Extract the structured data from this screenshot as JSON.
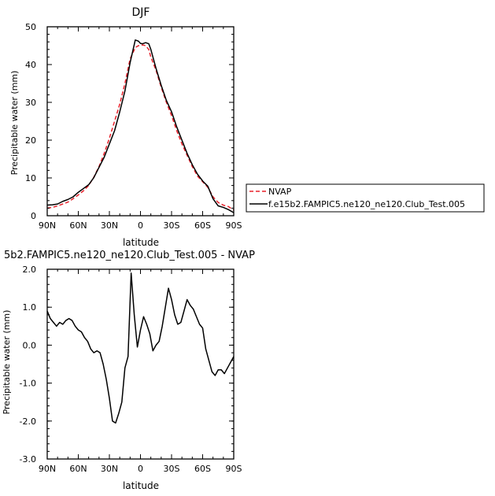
{
  "chart_data": [
    {
      "type": "line",
      "title": "DJF",
      "xlabel": "latitude",
      "ylabel": "Precipitable water (mm)",
      "xlim": [
        90,
        -90
      ],
      "ylim": [
        0,
        50
      ],
      "xticks": [
        90,
        60,
        30,
        0,
        -30,
        -60,
        -90
      ],
      "xtick_labels": [
        "90N",
        "60N",
        "30N",
        "0",
        "30S",
        "60S",
        "90S"
      ],
      "yticks": [
        0,
        10,
        20,
        30,
        40,
        50
      ],
      "ytick_labels": [
        "0",
        "10",
        "20",
        "30",
        "40",
        "50"
      ],
      "legend": "right",
      "series": [
        {
          "name": "NVAP",
          "color": "#e8202a",
          "dash": "dashed",
          "x": [
            90,
            85,
            80,
            75,
            70,
            65,
            60,
            55,
            50,
            45,
            40,
            35,
            30,
            25,
            20,
            15,
            10,
            5,
            2,
            0,
            -2,
            -5,
            -8,
            -10,
            -15,
            -20,
            -25,
            -30,
            -35,
            -40,
            -45,
            -50,
            -55,
            -60,
            -65,
            -70,
            -75,
            -80,
            -85,
            -90
          ],
          "values": [
            2.0,
            2.2,
            2.6,
            3.1,
            3.6,
            4.5,
            5.5,
            6.6,
            8.0,
            10.2,
            13.0,
            16.5,
            20.5,
            25.0,
            29.5,
            35.0,
            41.5,
            44.5,
            45.0,
            45.0,
            45.2,
            45.0,
            44.0,
            42.0,
            38.5,
            34.0,
            30.0,
            26.5,
            22.5,
            19.0,
            16.0,
            13.0,
            10.5,
            9.0,
            7.5,
            5.0,
            3.5,
            2.8,
            2.4,
            1.5
          ]
        },
        {
          "name": "f.e15b2.FAMPIC5.ne120_ne120.Club_Test.005",
          "color": "#000000",
          "dash": "solid",
          "x": [
            90,
            85,
            80,
            75,
            70,
            65,
            60,
            55,
            50,
            45,
            40,
            35,
            30,
            25,
            20,
            15,
            10,
            5,
            2,
            0,
            -2,
            -5,
            -8,
            -10,
            -15,
            -20,
            -25,
            -30,
            -35,
            -40,
            -45,
            -50,
            -55,
            -60,
            -65,
            -70,
            -75,
            -80,
            -85,
            -90
          ],
          "values": [
            2.8,
            2.9,
            3.1,
            3.8,
            4.3,
            5.0,
            6.2,
            7.2,
            8.2,
            10.1,
            12.8,
            15.5,
            19.0,
            22.5,
            27.5,
            33.0,
            40.5,
            46.5,
            46.2,
            45.6,
            45.5,
            45.8,
            45.5,
            44.0,
            39.0,
            34.5,
            30.5,
            27.5,
            23.5,
            20.0,
            16.5,
            13.5,
            11.0,
            9.2,
            7.8,
            4.5,
            2.6,
            2.2,
            1.6,
            0.8
          ]
        }
      ]
    },
    {
      "type": "line",
      "title": "5b2.FAMPIC5.ne120_ne120.Club_Test.005 - NVAP",
      "xlabel": "latitude",
      "ylabel": "Precipitable water (mm)",
      "xlim": [
        90,
        -90
      ],
      "ylim": [
        -3.0,
        2.0
      ],
      "xticks": [
        90,
        60,
        30,
        0,
        -30,
        -60,
        -90
      ],
      "xtick_labels": [
        "90N",
        "60N",
        "30N",
        "0",
        "30S",
        "60S",
        "90S"
      ],
      "yticks": [
        -3.0,
        -2.0,
        -1.0,
        0.0,
        1.0,
        2.0
      ],
      "ytick_labels": [
        "-3.0",
        "-2.0",
        "-1.0",
        "0.0",
        "1.0",
        "2.0"
      ],
      "series": [
        {
          "color": "#000000",
          "dash": "solid",
          "x": [
            90,
            87,
            84,
            81,
            78,
            75,
            72,
            69,
            66,
            63,
            60,
            57,
            54,
            51,
            48,
            45,
            42,
            39,
            36,
            33,
            30,
            27,
            24,
            21,
            18,
            15,
            12,
            9,
            6,
            3,
            0,
            -3,
            -6,
            -9,
            -12,
            -15,
            -18,
            -21,
            -24,
            -27,
            -30,
            -33,
            -36,
            -39,
            -42,
            -45,
            -48,
            -51,
            -54,
            -57,
            -60,
            -63,
            -66,
            -69,
            -72,
            -75,
            -78,
            -81,
            -84,
            -87,
            -90
          ],
          "values": [
            0.9,
            0.7,
            0.6,
            0.5,
            0.6,
            0.55,
            0.65,
            0.7,
            0.65,
            0.5,
            0.4,
            0.35,
            0.2,
            0.1,
            -0.1,
            -0.2,
            -0.15,
            -0.2,
            -0.5,
            -0.9,
            -1.4,
            -2.0,
            -2.05,
            -1.8,
            -1.5,
            -0.6,
            -0.3,
            1.9,
            0.8,
            -0.05,
            0.4,
            0.75,
            0.55,
            0.3,
            -0.15,
            0.0,
            0.1,
            0.5,
            1.0,
            1.5,
            1.2,
            0.8,
            0.55,
            0.6,
            0.9,
            1.2,
            1.05,
            0.95,
            0.75,
            0.55,
            0.45,
            -0.1,
            -0.4,
            -0.7,
            -0.8,
            -0.65,
            -0.65,
            -0.75,
            -0.6,
            -0.45,
            -0.3
          ]
        }
      ]
    }
  ]
}
